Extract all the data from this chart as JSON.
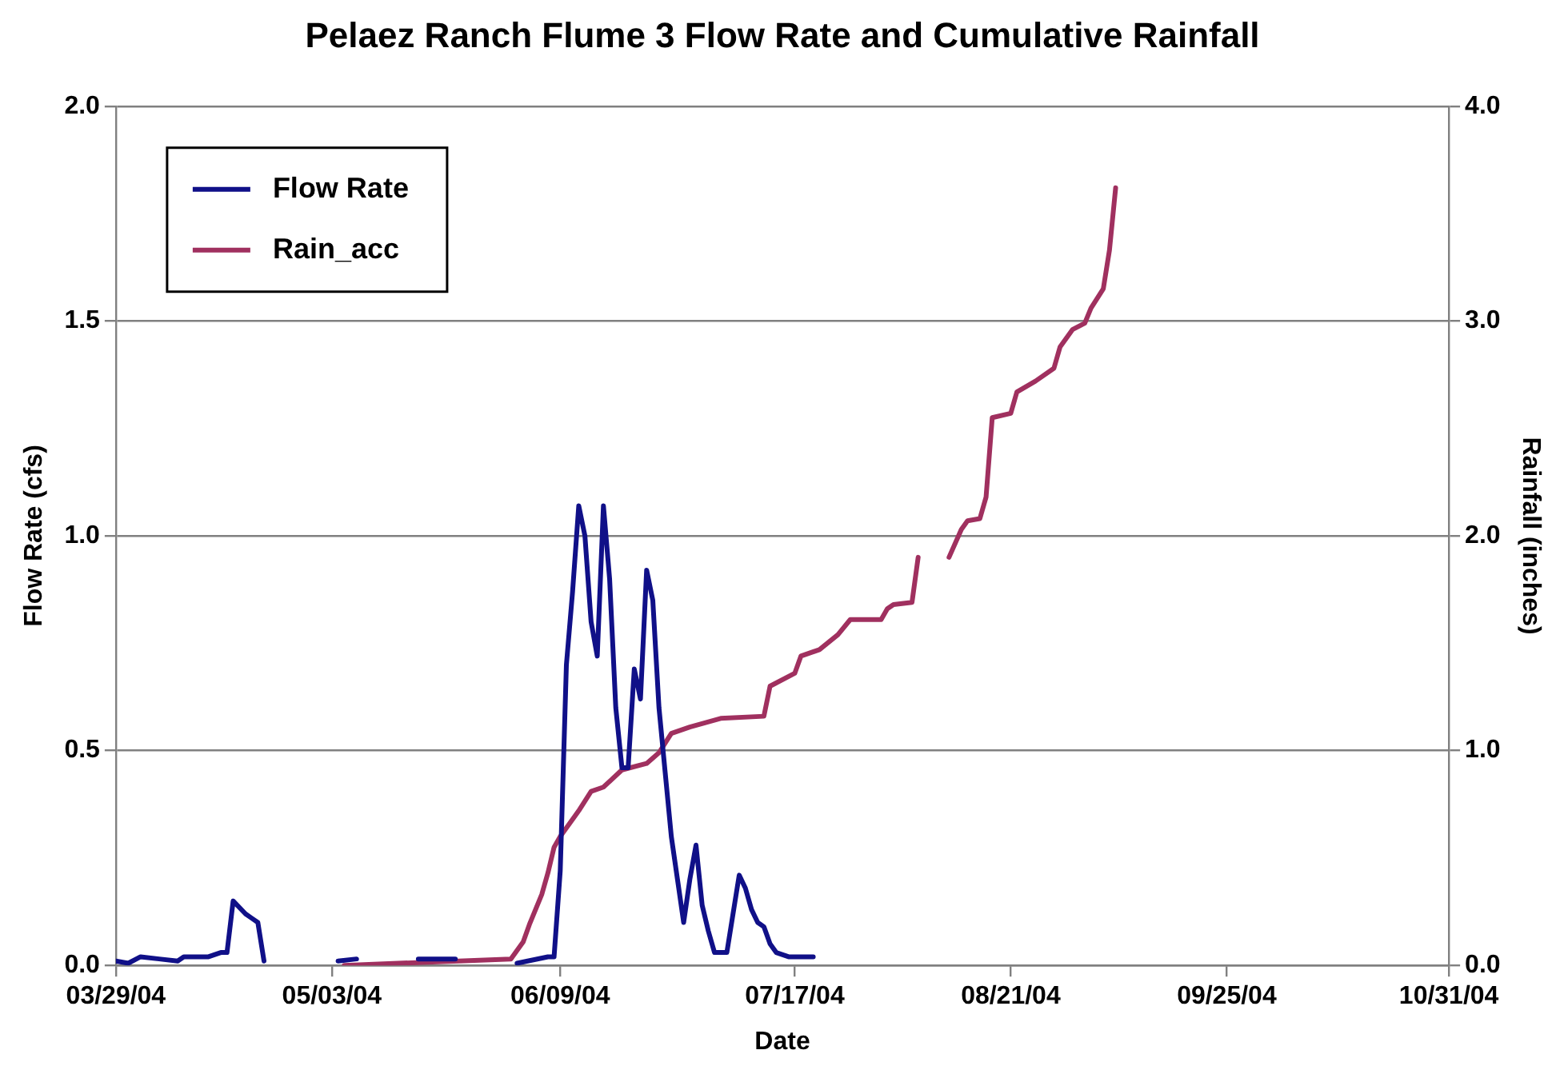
{
  "chart_data": {
    "type": "line",
    "title": "Pelaez Ranch Flume 3 Flow Rate and Cumulative Rainfall",
    "xlabel": "Date",
    "ylabel": "Flow Rate (cfs)",
    "y2label": "Rainfall (inches)",
    "xlim": [
      "2004-03-29",
      "2004-10-31"
    ],
    "xticks": [
      {
        "value": "2004-03-29",
        "label": "03/29/04"
      },
      {
        "value": "2004-05-03",
        "label": "05/03/04"
      },
      {
        "value": "2004-06-09",
        "label": "06/09/04"
      },
      {
        "value": "2004-07-17",
        "label": "07/17/04"
      },
      {
        "value": "2004-08-21",
        "label": "08/21/04"
      },
      {
        "value": "2004-09-25",
        "label": "09/25/04"
      },
      {
        "value": "2004-10-31",
        "label": "10/31/04"
      }
    ],
    "ylim": [
      0,
      2
    ],
    "yticks": [
      {
        "value": 0,
        "label": "0.0"
      },
      0.5,
      {
        "value": 1,
        "label": "1.0"
      },
      1.5,
      {
        "value": 2,
        "label": "2.0"
      }
    ],
    "y2lim": [
      0,
      4
    ],
    "y2ticks": [
      {
        "value": 0,
        "label": "0.0"
      },
      {
        "value": 1,
        "label": "1.0"
      },
      {
        "value": 2,
        "label": "2.0"
      },
      {
        "value": 3,
        "label": "3.0"
      },
      {
        "value": 4,
        "label": "4.0"
      }
    ],
    "grid": "y",
    "legend": "top left",
    "marker": "none",
    "series": [
      {
        "name": "Flow Rate",
        "color": "#101088",
        "x": [
          "2004-03-29",
          "2004-03-31",
          "2004-04-02",
          "2004-04-05",
          "2004-04-08",
          "2004-04-09",
          "2004-04-13",
          "2004-04-15",
          "2004-04-16",
          "2004-04-17",
          "2004-04-19",
          "2004-04-20",
          "2004-04-21",
          "2004-04-22",
          "2004-04-28",
          "2004-05-04",
          "2004-05-07",
          "2004-05-12",
          "2004-05-17",
          "2004-05-23",
          "2004-05-28",
          "2004-06-02",
          "2004-06-07",
          "2004-06-08",
          "2004-06-09",
          "2004-06-10",
          "2004-06-11",
          "2004-06-12",
          "2004-06-13",
          "2004-06-14",
          "2004-06-15",
          "2004-06-16",
          "2004-06-17",
          "2004-06-18",
          "2004-06-19",
          "2004-06-20",
          "2004-06-21",
          "2004-06-22",
          "2004-06-23",
          "2004-06-24",
          "2004-06-25",
          "2004-06-26",
          "2004-06-27",
          "2004-06-28",
          "2004-06-29",
          "2004-06-30",
          "2004-07-01",
          "2004-07-02",
          "2004-07-03",
          "2004-07-04",
          "2004-07-06",
          "2004-07-07",
          "2004-07-08",
          "2004-07-09",
          "2004-07-10",
          "2004-07-11",
          "2004-07-12",
          "2004-07-13",
          "2004-07-14",
          "2004-07-16",
          "2004-07-20"
        ],
        "values": [
          0.01,
          0.005,
          0.02,
          0.015,
          0.01,
          0.02,
          0.02,
          0.03,
          0.03,
          0.15,
          0.12,
          0.11,
          0.1,
          0.01,
          null,
          0.01,
          0.015,
          null,
          0.015,
          0.015,
          null,
          0.005,
          0.02,
          0.02,
          0.22,
          0.7,
          0.87,
          1.07,
          1.0,
          0.8,
          0.72,
          1.07,
          0.9,
          0.6,
          0.46,
          0.46,
          0.69,
          0.62,
          0.92,
          0.85,
          0.6,
          0.45,
          0.3,
          0.2,
          0.1,
          0.2,
          0.28,
          0.14,
          0.08,
          0.03,
          0.03,
          0.12,
          0.21,
          0.18,
          0.13,
          0.1,
          0.09,
          0.05,
          0.03,
          0.02,
          0.02
        ]
      },
      {
        "name": "Rain_acc",
        "color": "#a0305f",
        "axis": "y2",
        "x": [
          "2004-05-05",
          "2004-06-01",
          "2004-06-03",
          "2004-06-04",
          "2004-06-06",
          "2004-06-07",
          "2004-06-08",
          "2004-06-09",
          "2004-06-12",
          "2004-06-14",
          "2004-06-16",
          "2004-06-19",
          "2004-06-23",
          "2004-06-25",
          "2004-06-27",
          "2004-06-30",
          "2004-07-05",
          "2004-07-12",
          "2004-07-13",
          "2004-07-17",
          "2004-07-18",
          "2004-07-21",
          "2004-07-24",
          "2004-07-26",
          "2004-07-31",
          "2004-08-01",
          "2004-08-02",
          "2004-08-05",
          "2004-08-06",
          "2004-08-08",
          "2004-08-11",
          "2004-08-13",
          "2004-08-14",
          "2004-08-16",
          "2004-08-17",
          "2004-08-18",
          "2004-08-21",
          "2004-08-22",
          "2004-08-25",
          "2004-08-28",
          "2004-08-29",
          "2004-08-31",
          "2004-09-02",
          "2004-09-03",
          "2004-09-05",
          "2004-09-06",
          "2004-09-07"
        ],
        "values": [
          0,
          0.03,
          0.11,
          0.19,
          0.33,
          0.43,
          0.55,
          0.6,
          0.72,
          0.81,
          0.83,
          0.91,
          0.94,
          0.99,
          1.08,
          1.11,
          1.15,
          1.16,
          1.3,
          1.36,
          1.44,
          1.47,
          1.54,
          1.61,
          1.61,
          1.66,
          1.68,
          1.69,
          1.9,
          null,
          1.9,
          2.03,
          2.07,
          2.08,
          2.18,
          2.55,
          2.57,
          2.67,
          2.72,
          2.78,
          2.88,
          2.96,
          2.99,
          3.06,
          3.15,
          3.33,
          3.62
        ]
      }
    ]
  }
}
